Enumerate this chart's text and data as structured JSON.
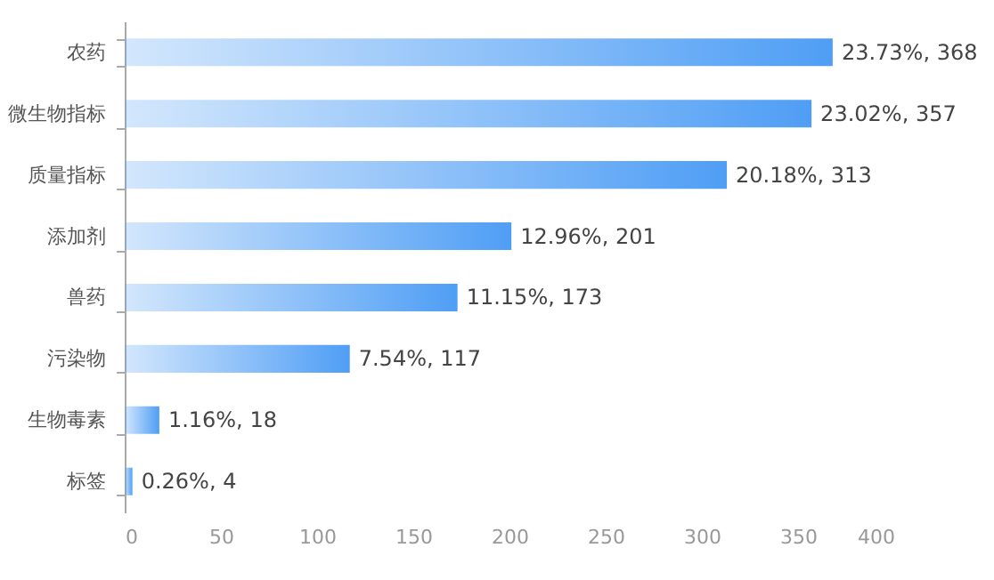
{
  "chart_data": {
    "type": "bar",
    "orientation": "horizontal",
    "categories": [
      "农药",
      "微生物指标",
      "质量指标",
      "添加剂",
      "兽药",
      "污染物",
      "生物毒素",
      "标签"
    ],
    "values": [
      368,
      357,
      313,
      201,
      173,
      117,
      18,
      4
    ],
    "value_labels": [
      "23.73%, 368",
      "23.02%, 357",
      "20.18%, 313",
      "12.96%, 201",
      "11.15%, 173",
      "7.54%, 117",
      "1.16%, 18",
      "0.26%, 4"
    ],
    "color": "#4f9ef5",
    "xlim": [
      0,
      400
    ],
    "xticks": [
      0,
      50,
      100,
      150,
      200,
      250,
      300,
      350,
      400
    ],
    "grid": false
  }
}
